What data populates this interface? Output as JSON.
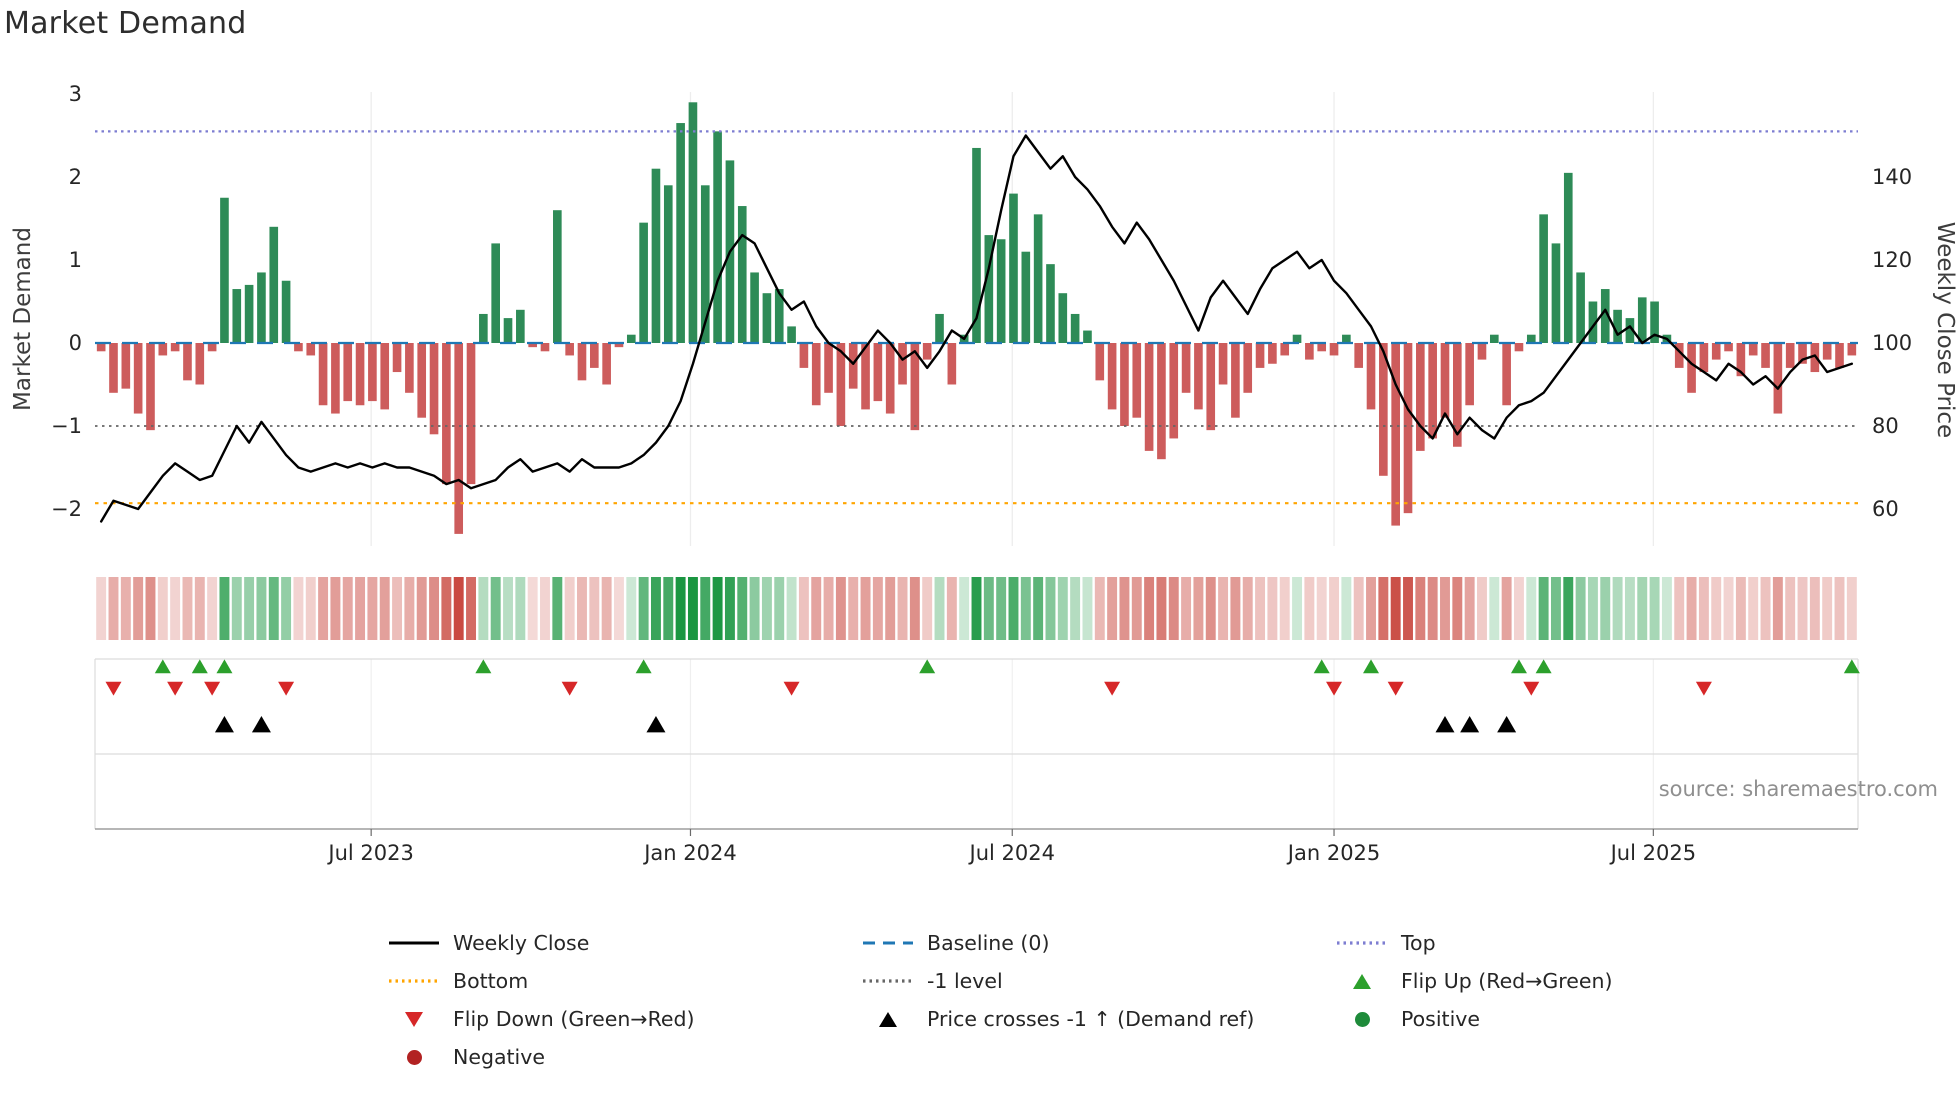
{
  "page": {
    "title": "Market Demand",
    "source_text": "source: sharemaestro.com"
  },
  "chart_data": {
    "type": "bar",
    "title": "Market Demand",
    "ylabel_left": "Market Demand",
    "ylabel_right": "Weekly Close Price",
    "x_ticks": [
      {
        "label": "Jul 2023",
        "i": 21.9
      },
      {
        "label": "Jan 2024",
        "i": 47.8
      },
      {
        "label": "Jul 2024",
        "i": 73.9
      },
      {
        "label": "Jan 2025",
        "i": 100.0
      },
      {
        "label": "Jul 2025",
        "i": 125.9
      }
    ],
    "y_left_ticks": [
      {
        "label": "3",
        "v": 3
      },
      {
        "label": "2",
        "v": 2
      },
      {
        "label": "1",
        "v": 1
      },
      {
        "label": "0",
        "v": 0
      },
      {
        "label": "−1",
        "v": -1
      },
      {
        "label": "−2",
        "v": -2
      }
    ],
    "y_right_ticks": [
      {
        "label": "140",
        "v": 140
      },
      {
        "label": "120",
        "v": 120
      },
      {
        "label": "100",
        "v": 100
      },
      {
        "label": "80",
        "v": 80
      },
      {
        "label": "60",
        "v": 60
      }
    ],
    "y_left_range": [
      -2.45,
      3.05
    ],
    "ref_lines": {
      "top": 2.55,
      "baseline": 0,
      "minus1": -1,
      "bottom": -1.93
    },
    "series": [
      {
        "name": "Market Demand (weekly bars)",
        "type": "bar",
        "axis": "left",
        "values": [
          -0.1,
          -0.6,
          -0.55,
          -0.85,
          -1.05,
          -0.15,
          -0.1,
          -0.45,
          -0.5,
          -0.1,
          1.75,
          0.65,
          0.7,
          0.85,
          1.4,
          0.75,
          -0.1,
          -0.15,
          -0.75,
          -0.85,
          -0.7,
          -0.75,
          -0.7,
          -0.8,
          -0.35,
          -0.6,
          -0.9,
          -1.1,
          -1.7,
          -2.3,
          -1.7,
          0.35,
          1.2,
          0.3,
          0.4,
          -0.05,
          -0.1,
          1.6,
          -0.15,
          -0.45,
          -0.3,
          -0.5,
          -0.05,
          0.1,
          1.45,
          2.1,
          1.9,
          2.65,
          2.9,
          1.9,
          2.55,
          2.2,
          1.65,
          0.85,
          0.6,
          0.65,
          0.2,
          -0.3,
          -0.75,
          -0.6,
          -1.0,
          -0.55,
          -0.8,
          -0.7,
          -0.85,
          -0.5,
          -1.05,
          -0.2,
          0.35,
          -0.5,
          0.1,
          2.35,
          1.3,
          1.25,
          1.8,
          1.1,
          1.55,
          0.95,
          0.6,
          0.35,
          0.15,
          -0.45,
          -0.8,
          -1.0,
          -0.9,
          -1.3,
          -1.4,
          -1.15,
          -0.6,
          -0.8,
          -1.05,
          -0.5,
          -0.9,
          -0.6,
          -0.3,
          -0.25,
          -0.15,
          0.1,
          -0.2,
          -0.1,
          -0.15,
          0.1,
          -0.3,
          -0.8,
          -1.6,
          -2.2,
          -2.05,
          -1.3,
          -1.15,
          -0.9,
          -1.25,
          -0.75,
          -0.2,
          0.1,
          -0.75,
          -0.1,
          0.1,
          1.55,
          1.2,
          2.05,
          0.85,
          0.5,
          0.65,
          0.4,
          0.3,
          0.55,
          0.5,
          0.1,
          -0.3,
          -0.6,
          -0.35,
          -0.2,
          -0.1,
          -0.4,
          -0.15,
          -0.3,
          -0.85,
          -0.3,
          -0.25,
          -0.35,
          -0.2,
          -0.3,
          -0.15
        ]
      },
      {
        "name": "Weekly Close",
        "type": "line",
        "axis": "right",
        "values": [
          57,
          62,
          61,
          60,
          64,
          68,
          71,
          69,
          67,
          68,
          74,
          80,
          76,
          81,
          77,
          73,
          70,
          69,
          70,
          71,
          70,
          71,
          70,
          71,
          70,
          70,
          69,
          68,
          66,
          67,
          65,
          66,
          67,
          70,
          72,
          69,
          70,
          71,
          69,
          72,
          70,
          70,
          70,
          71,
          73,
          76,
          80,
          86,
          95,
          105,
          115,
          122,
          126,
          124,
          118,
          112,
          108,
          110,
          104,
          100,
          98,
          95,
          99,
          103,
          100,
          96,
          98,
          94,
          98,
          103,
          101,
          106,
          118,
          132,
          145,
          150,
          146,
          142,
          145,
          140,
          137,
          133,
          128,
          124,
          129,
          125,
          120,
          115,
          109,
          103,
          111,
          115,
          111,
          107,
          113,
          118,
          120,
          122,
          118,
          120,
          115,
          112,
          108,
          104,
          98,
          90,
          84,
          80,
          77,
          83,
          78,
          82,
          79,
          77,
          82,
          85,
          86,
          88,
          92,
          96,
          100,
          104,
          108,
          102,
          104,
          100,
          102,
          101,
          98,
          95,
          93,
          91,
          95,
          93,
          90,
          92,
          89,
          93,
          96,
          97,
          93,
          94,
          95
        ]
      }
    ],
    "markers": {
      "flip_up": [
        5,
        8,
        10,
        31,
        44,
        67,
        99,
        103,
        115,
        117,
        142
      ],
      "flip_down": [
        1,
        6,
        9,
        15,
        38,
        56,
        82,
        100,
        105,
        116,
        130
      ],
      "price_cross_minus1": [
        10,
        13,
        45,
        109,
        111,
        114
      ]
    },
    "heatmap_note": "strip colors derived from bar values: green=positive, red=negative, intensity=|value|",
    "legend_position": "bottom",
    "grid": "light vertical gridlines at date ticks",
    "colors": {
      "bar_positive": "#2e8b57",
      "bar_negative": "#cd5c5c",
      "price_line": "#000000",
      "baseline": "#1f77b4",
      "top": "#7d7dd1",
      "bottom": "#ffa500",
      "minus1": "#666666",
      "flip_up": "#2ca02c",
      "flip_down": "#d62728",
      "price_cross": "#000000",
      "heat_positive": "#1a9641",
      "heat_negative": "#c53b32"
    }
  },
  "legend": {
    "items": [
      {
        "label": "Weekly Close",
        "marker": "line",
        "style": "solid",
        "color": "#000000"
      },
      {
        "label": "Baseline (0)",
        "marker": "line",
        "style": "dashed",
        "color": "#1f77b4"
      },
      {
        "label": "Top",
        "marker": "line",
        "style": "dotted",
        "color": "#7d7dd1"
      },
      {
        "label": "Bottom",
        "marker": "line",
        "style": "dotted",
        "color": "#ffa500"
      },
      {
        "label": "-1 level",
        "marker": "line",
        "style": "dotted",
        "color": "#666666"
      },
      {
        "label": "Flip Up (Red→Green)",
        "marker": "tri-up",
        "color": "#2ca02c"
      },
      {
        "label": "Flip Down (Green→Red)",
        "marker": "tri-down",
        "color": "#d62728"
      },
      {
        "label": "Price crosses -1 ↑ (Demand ref)",
        "marker": "tri-up",
        "color": "#000000"
      },
      {
        "label": "Positive",
        "marker": "dot",
        "color": "#1e8b3a"
      },
      {
        "label": "Negative",
        "marker": "dot",
        "color": "#b22222"
      }
    ]
  }
}
